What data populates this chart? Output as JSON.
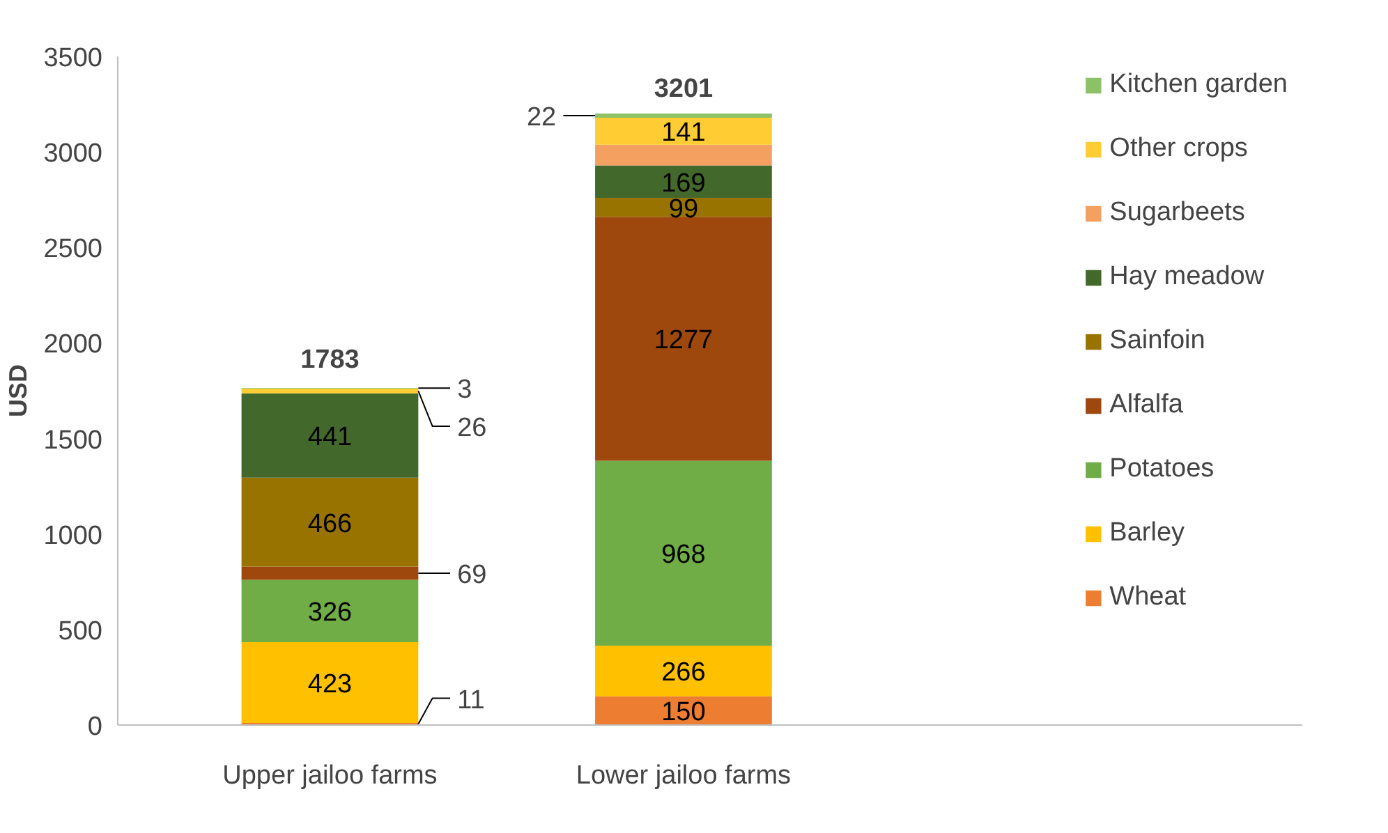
{
  "chart_data": {
    "type": "bar",
    "stacked": true,
    "ylabel": "USD",
    "categories": [
      "Upper jailoo farms",
      "Lower jailoo farms"
    ],
    "series": [
      {
        "name": "Wheat",
        "color": "#ed7d31",
        "values": [
          11,
          150
        ]
      },
      {
        "name": "Barley",
        "color": "#ffc000",
        "values": [
          423,
          266
        ]
      },
      {
        "name": "Potatoes",
        "color": "#70ad47",
        "values": [
          326,
          968
        ]
      },
      {
        "name": "Alfalfa",
        "color": "#9e480e",
        "values": [
          69,
          1277
        ]
      },
      {
        "name": "Sainfoin",
        "color": "#997300",
        "values": [
          466,
          99
        ]
      },
      {
        "name": "Hay meadow",
        "color": "#43682b",
        "values": [
          441,
          169
        ]
      },
      {
        "name": "Sugarbeets",
        "color": "#f4a060",
        "values": [
          null,
          109
        ],
        "value_labels": [
          null,
          null
        ]
      },
      {
        "name": "Other crops",
        "color": "#ffcd33",
        "values": [
          26,
          141
        ]
      },
      {
        "name": "Kitchen garden",
        "color": "#8cc168",
        "values": [
          3,
          22
        ]
      }
    ],
    "data_labels": true,
    "annotations": [
      {
        "text": "1783",
        "x": "Upper jailoo farms",
        "y": 1783
      },
      {
        "text": "3201",
        "x": "Lower jailoo farms",
        "y": 3201
      }
    ],
    "ylim": [
      0,
      3500
    ],
    "yticks": [
      0,
      500,
      1000,
      1500,
      2000,
      2500,
      3000,
      3500
    ],
    "grid": false,
    "legend": "right"
  }
}
